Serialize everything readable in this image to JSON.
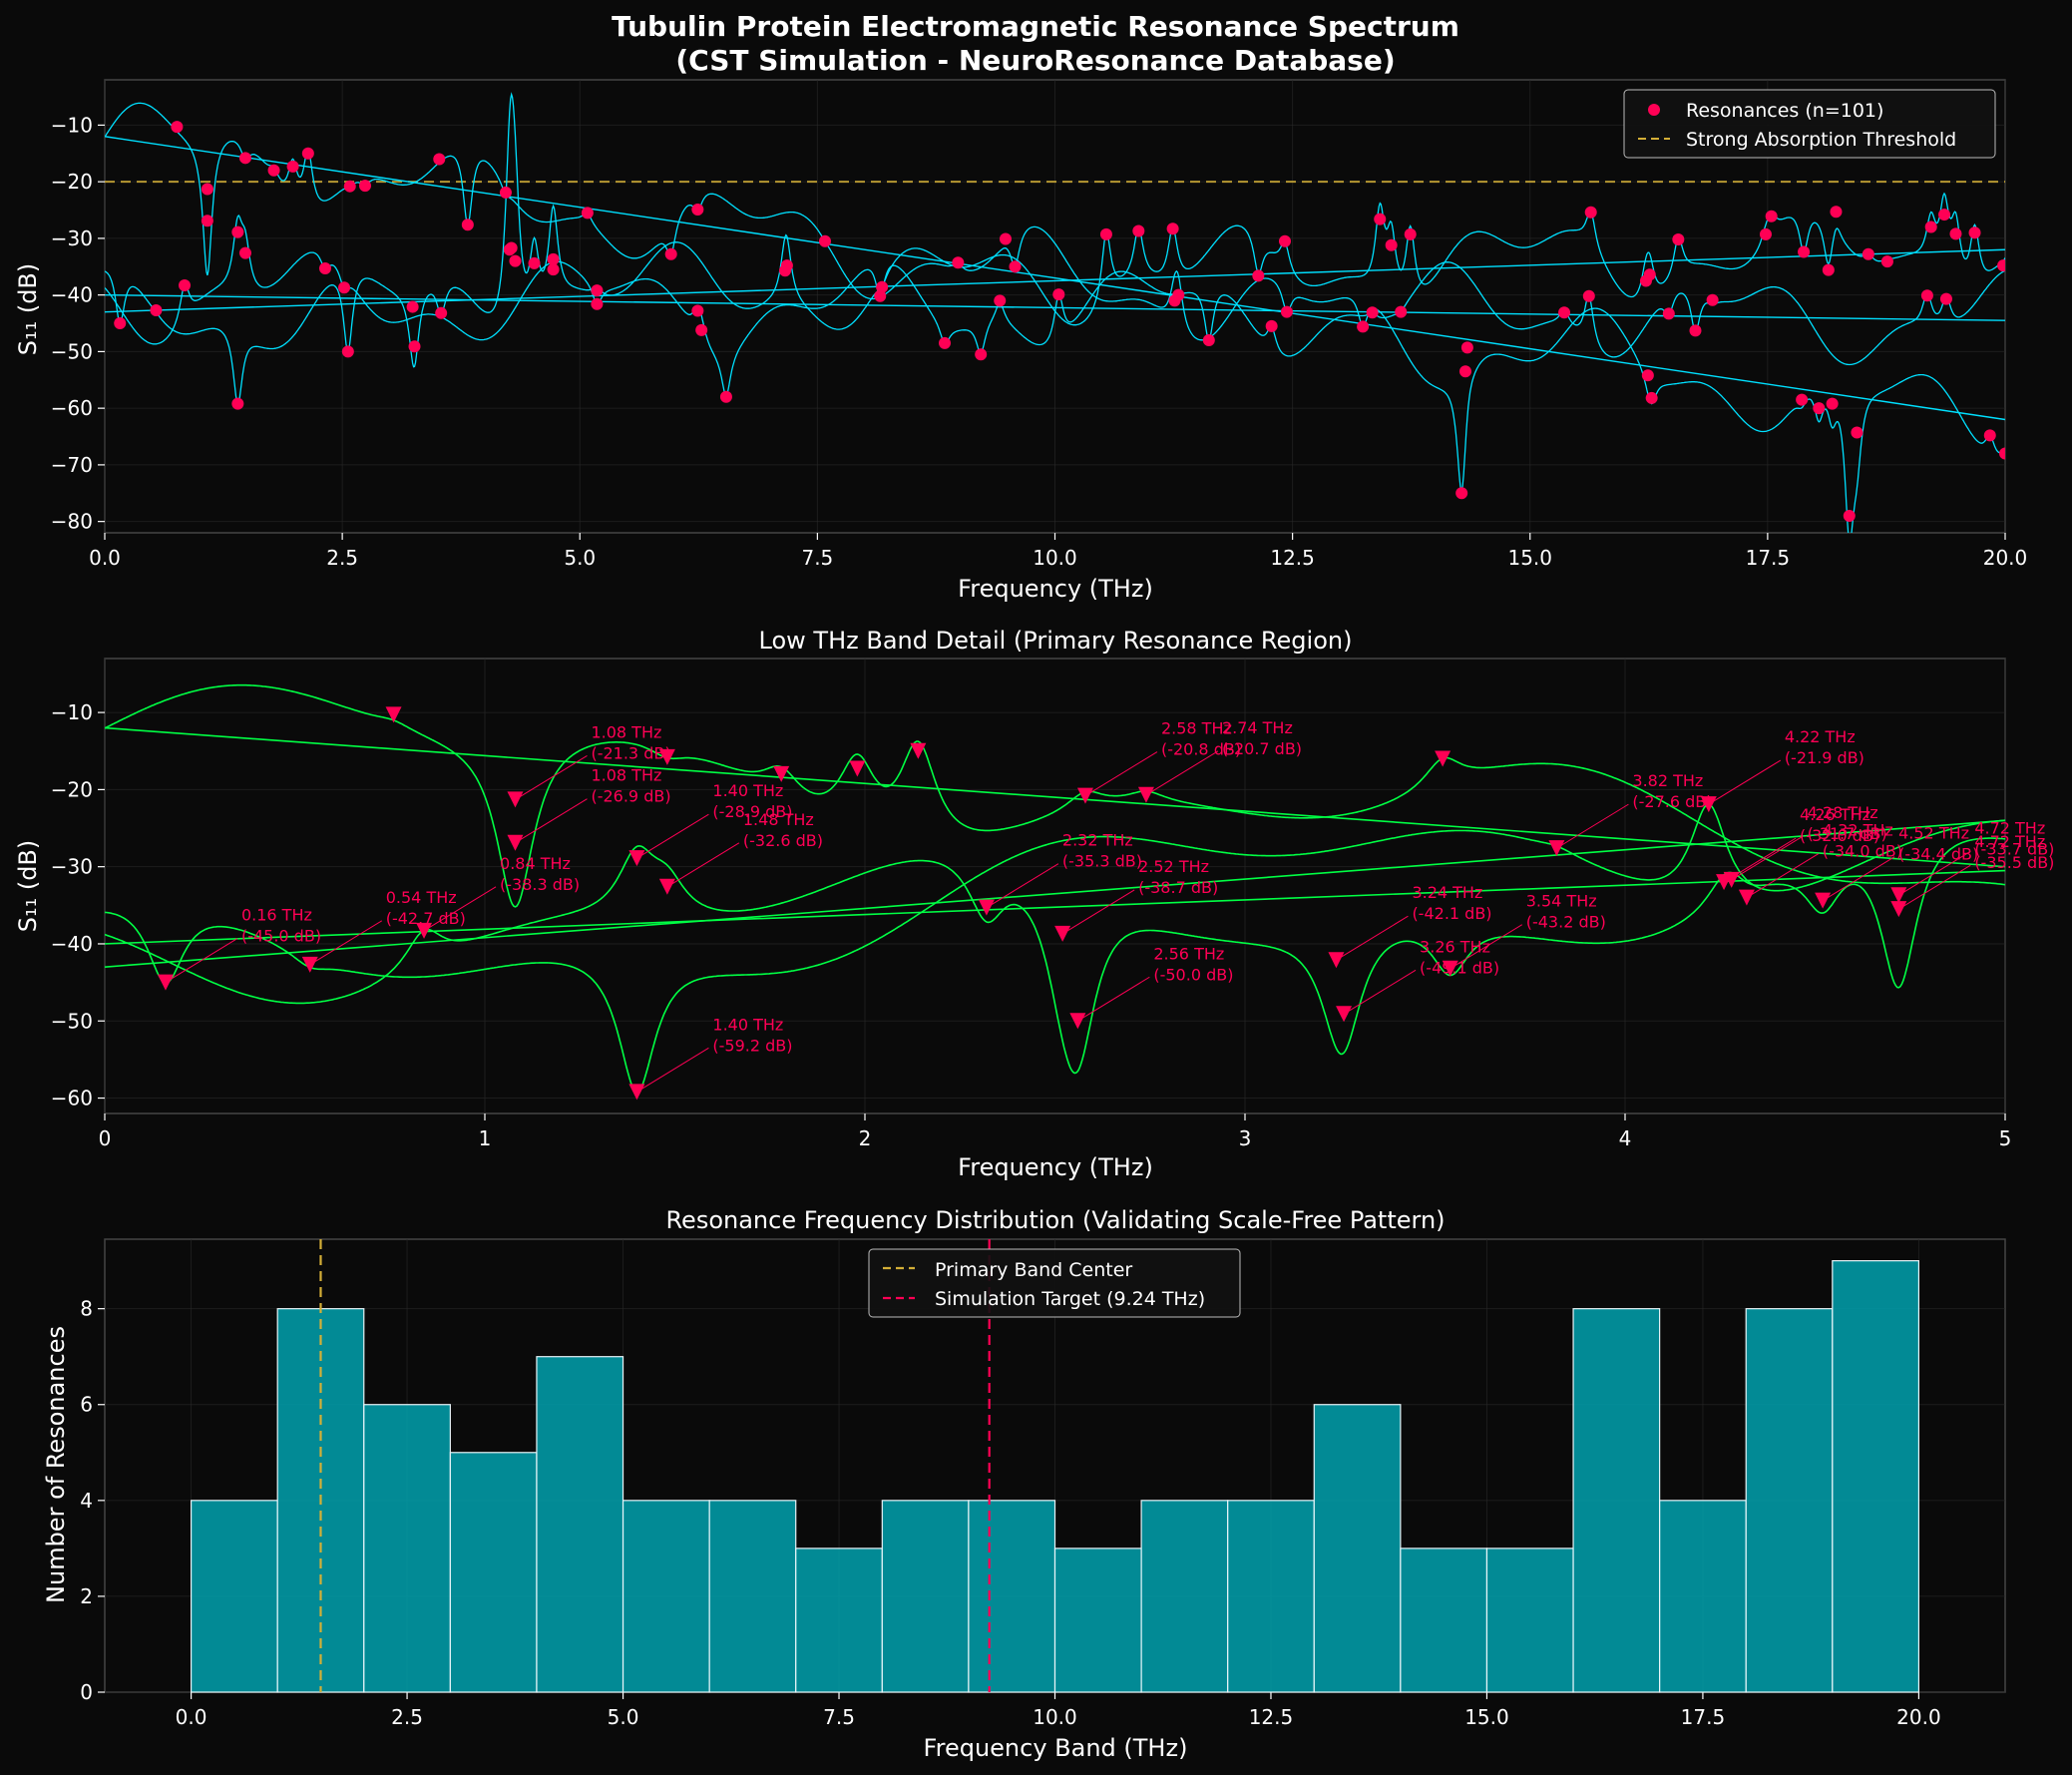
{
  "figure": {
    "title_line1": "Tubulin Protein Electromagnetic Resonance Spectrum",
    "title_line2": "(CST Simulation - NeuroResonance Database)"
  },
  "colors": {
    "background": "#0a0a0a",
    "axes_bg": "#0a0a0a",
    "spine": "#444444",
    "text": "#ffffff",
    "cyan": "#00e0ff",
    "green": "#00ff44",
    "marker": "#ff0055",
    "gold": "#d4af37",
    "bar": "#00aab8",
    "bar_edge": "#e8f4f8"
  },
  "chart_data": [
    {
      "id": "spectrum",
      "type": "line",
      "title": "",
      "xlabel": "Frequency (THz)",
      "ylabel": "S₁₁ (dB)",
      "xlim": [
        0,
        20
      ],
      "ylim": [
        -82,
        -2
      ],
      "xticks": [
        "0.0",
        "2.5",
        "5.0",
        "7.5",
        "10.0",
        "12.5",
        "15.0",
        "17.5",
        "20.0"
      ],
      "xtick_values": [
        0,
        2.5,
        5,
        7.5,
        10,
        12.5,
        15,
        17.5,
        20
      ],
      "yticks": [
        "−10",
        "−20",
        "−30",
        "−40",
        "−50",
        "−60",
        "−70",
        "−80"
      ],
      "ytick_values": [
        -10,
        -20,
        -30,
        -40,
        -50,
        -60,
        -70,
        -80
      ],
      "threshold": -20,
      "legend": [
        {
          "label": "Resonances (n=101)",
          "kind": "marker"
        },
        {
          "label": "Strong Absorption Threshold",
          "kind": "dashed"
        }
      ],
      "trends": [
        {
          "x": [
            0,
            20
          ],
          "y": [
            -12,
            -62
          ]
        },
        {
          "x": [
            0,
            20
          ],
          "y": [
            -43,
            -32
          ]
        },
        {
          "x": [
            0,
            20
          ],
          "y": [
            -40,
            -44.5
          ]
        }
      ],
      "resonances": [
        [
          0.16,
          -45.0
        ],
        [
          0.54,
          -42.7
        ],
        [
          0.76,
          -10.3
        ],
        [
          0.84,
          -38.3
        ],
        [
          1.08,
          -21.3
        ],
        [
          1.08,
          -26.9
        ],
        [
          1.4,
          -28.9
        ],
        [
          1.4,
          -59.2
        ],
        [
          1.48,
          -32.6
        ],
        [
          1.48,
          -15.8
        ],
        [
          1.78,
          -18.0
        ],
        [
          1.98,
          -17.3
        ],
        [
          2.14,
          -15.0
        ],
        [
          2.32,
          -35.3
        ],
        [
          2.52,
          -38.7
        ],
        [
          2.56,
          -50.0
        ],
        [
          2.58,
          -20.8
        ],
        [
          2.74,
          -20.7
        ],
        [
          3.24,
          -42.1
        ],
        [
          3.26,
          -49.1
        ],
        [
          3.52,
          -16.0
        ],
        [
          3.54,
          -43.2
        ],
        [
          3.82,
          -27.6
        ],
        [
          4.22,
          -21.9
        ],
        [
          4.26,
          -32.0
        ],
        [
          4.28,
          -31.7
        ],
        [
          4.32,
          -34.0
        ],
        [
          4.52,
          -34.4
        ],
        [
          4.72,
          -35.5
        ],
        [
          4.72,
          -33.7
        ],
        [
          5.08,
          -25.5
        ],
        [
          5.18,
          -41.6
        ],
        [
          5.18,
          -39.2
        ],
        [
          5.96,
          -32.8
        ],
        [
          6.24,
          -24.9
        ],
        [
          6.24,
          -42.8
        ],
        [
          6.28,
          -46.2
        ],
        [
          6.54,
          -58.0
        ],
        [
          7.16,
          -35.7
        ],
        [
          7.18,
          -34.8
        ],
        [
          7.58,
          -30.5
        ],
        [
          8.16,
          -40.2
        ],
        [
          8.18,
          -38.6
        ],
        [
          8.84,
          -48.5
        ],
        [
          8.98,
          -34.3
        ],
        [
          9.22,
          -50.5
        ],
        [
          9.42,
          -41.0
        ],
        [
          9.48,
          -30.1
        ],
        [
          9.58,
          -35.0
        ],
        [
          10.04,
          -39.9
        ],
        [
          10.54,
          -29.3
        ],
        [
          10.88,
          -28.7
        ],
        [
          11.24,
          -28.3
        ],
        [
          11.26,
          -41.0
        ],
        [
          11.3,
          -40.0
        ],
        [
          11.62,
          -48.0
        ],
        [
          12.14,
          -36.6
        ],
        [
          12.28,
          -45.5
        ],
        [
          12.42,
          -30.5
        ],
        [
          12.44,
          -43.0
        ],
        [
          13.24,
          -45.6
        ],
        [
          13.34,
          -43.1
        ],
        [
          13.42,
          -26.6
        ],
        [
          13.54,
          -31.2
        ],
        [
          13.64,
          -43.0
        ],
        [
          13.74,
          -29.3
        ],
        [
          14.28,
          -75.0
        ],
        [
          14.32,
          -53.5
        ],
        [
          14.34,
          -49.3
        ],
        [
          15.36,
          -43.1
        ],
        [
          15.62,
          -40.2
        ],
        [
          15.64,
          -25.4
        ],
        [
          16.22,
          -37.5
        ],
        [
          16.24,
          -54.2
        ],
        [
          16.26,
          -36.4
        ],
        [
          16.28,
          -58.2
        ],
        [
          16.46,
          -43.3
        ],
        [
          16.56,
          -30.2
        ],
        [
          16.74,
          -46.3
        ],
        [
          16.92,
          -40.9
        ],
        [
          17.48,
          -29.3
        ],
        [
          17.54,
          -26.1
        ],
        [
          17.86,
          -58.5
        ],
        [
          17.88,
          -32.4
        ],
        [
          18.04,
          -60.0
        ],
        [
          18.14,
          -35.6
        ],
        [
          18.18,
          -59.2
        ],
        [
          18.22,
          -25.3
        ],
        [
          18.36,
          -79.0
        ],
        [
          18.44,
          -64.3
        ],
        [
          18.56,
          -32.8
        ],
        [
          18.76,
          -34.1
        ],
        [
          19.18,
          -40.1
        ],
        [
          19.22,
          -28.0
        ],
        [
          19.36,
          -25.8
        ],
        [
          19.38,
          -40.7
        ],
        [
          19.48,
          -29.2
        ],
        [
          19.68,
          -29.0
        ],
        [
          19.84,
          -64.8
        ],
        [
          19.98,
          -34.8
        ],
        [
          20.0,
          -68.0
        ]
      ]
    },
    {
      "id": "lowband",
      "type": "line",
      "title": "Low THz Band Detail (Primary Resonance Region)",
      "xlabel": "Frequency (THz)",
      "ylabel": "S₁₁ (dB)",
      "xlim": [
        0,
        5
      ],
      "ylim": [
        -62,
        -3
      ],
      "xticks": [
        "0",
        "1",
        "2",
        "3",
        "4",
        "5"
      ],
      "xtick_values": [
        0,
        1,
        2,
        3,
        4,
        5
      ],
      "yticks": [
        "−10",
        "−20",
        "−30",
        "−40",
        "−50",
        "−60"
      ],
      "ytick_values": [
        -10,
        -20,
        -30,
        -40,
        -50,
        -60
      ],
      "trends": [
        {
          "x": [
            0,
            5
          ],
          "y": [
            -12,
            -30.0
          ]
        },
        {
          "x": [
            0,
            5
          ],
          "y": [
            -43,
            -24.0
          ]
        },
        {
          "x": [
            0,
            5
          ],
          "y": [
            -40,
            -30.5
          ]
        }
      ],
      "annotations": [
        {
          "x": 0.16,
          "y": -45.0,
          "label1": "0.16 THz",
          "label2": "(-45.0 dB)"
        },
        {
          "x": 0.54,
          "y": -42.7,
          "label1": "0.54 THz",
          "label2": "(-42.7 dB)"
        },
        {
          "x": 0.84,
          "y": -38.3,
          "label1": "0.84 THz",
          "label2": "(-38.3 dB)"
        },
        {
          "x": 1.08,
          "y": -21.3,
          "label1": "1.08 THz",
          "label2": "(-21.3 dB)"
        },
        {
          "x": 1.08,
          "y": -26.9,
          "label1": "1.08 THz",
          "label2": "(-26.9 dB)"
        },
        {
          "x": 1.4,
          "y": -28.9,
          "label1": "1.40 THz",
          "label2": "(-28.9 dB)"
        },
        {
          "x": 1.48,
          "y": -32.6,
          "label1": "1.48 THz",
          "label2": "(-32.6 dB)"
        },
        {
          "x": 1.4,
          "y": -59.2,
          "label1": "1.40 THz",
          "label2": "(-59.2 dB)"
        },
        {
          "x": 2.32,
          "y": -35.3,
          "label1": "2.32 THz",
          "label2": "(-35.3 dB)"
        },
        {
          "x": 2.52,
          "y": -38.7,
          "label1": "2.52 THz",
          "label2": "(-38.7 dB)"
        },
        {
          "x": 2.56,
          "y": -50.0,
          "label1": "2.56 THz",
          "label2": "(-50.0 dB)"
        },
        {
          "x": 2.58,
          "y": -20.8,
          "label1": "2.58 THz",
          "label2": "(-20.8 dB)"
        },
        {
          "x": 2.74,
          "y": -20.7,
          "label1": "2.74 THz",
          "label2": "(-20.7 dB)"
        },
        {
          "x": 3.24,
          "y": -42.1,
          "label1": "3.24 THz",
          "label2": "(-42.1 dB)"
        },
        {
          "x": 3.26,
          "y": -49.1,
          "label1": "3.26 THz",
          "label2": "(-49.1 dB)"
        },
        {
          "x": 3.54,
          "y": -43.2,
          "label1": "3.54 THz",
          "label2": "(-43.2 dB)"
        },
        {
          "x": 3.82,
          "y": -27.6,
          "label1": "3.82 THz",
          "label2": "(-27.6 dB)"
        },
        {
          "x": 4.22,
          "y": -21.9,
          "label1": "4.22 THz",
          "label2": "(-21.9 dB)"
        },
        {
          "x": 4.26,
          "y": -32.0,
          "label1": "4.26 THz",
          "label2": "(-32.0 dB)"
        },
        {
          "x": 4.28,
          "y": -31.7,
          "label1": "4.28 THz",
          "label2": "(-31.7 dB)"
        },
        {
          "x": 4.32,
          "y": -34.0,
          "label1": "4.32 THz",
          "label2": "(-34.0 dB)"
        },
        {
          "x": 4.52,
          "y": -34.4,
          "label1": "4.52 THz",
          "label2": "(-34.4 dB)"
        },
        {
          "x": 4.72,
          "y": -35.5,
          "label1": "4.72 THz",
          "label2": "(-35.5 dB)"
        },
        {
          "x": 4.72,
          "y": -33.7,
          "label1": "4.72 THz",
          "label2": "(-33.7 dB)"
        }
      ],
      "extra_markers": [
        [
          0.76,
          -10.3
        ],
        [
          1.48,
          -15.8
        ],
        [
          1.78,
          -18.0
        ],
        [
          1.98,
          -17.3
        ],
        [
          2.14,
          -15.0
        ],
        [
          3.52,
          -16.0
        ]
      ]
    },
    {
      "id": "histogram",
      "type": "bar",
      "title": "Resonance Frequency Distribution (Validating Scale-Free Pattern)",
      "xlabel": "Frequency Band (THz)",
      "ylabel": "Number of Resonances",
      "xlim": [
        -1,
        21
      ],
      "ylim": [
        0,
        9.45
      ],
      "xticks": [
        "0.0",
        "2.5",
        "5.0",
        "7.5",
        "10.0",
        "12.5",
        "15.0",
        "17.5",
        "20.0"
      ],
      "xtick_values": [
        0,
        2.5,
        5,
        7.5,
        10,
        12.5,
        15,
        17.5,
        20
      ],
      "yticks": [
        "0",
        "2",
        "4",
        "6",
        "8"
      ],
      "ytick_values": [
        0,
        2,
        4,
        6,
        8
      ],
      "bin_edges": [
        0,
        1,
        2,
        3,
        4,
        5,
        6,
        7,
        8,
        9,
        10,
        11,
        12,
        13,
        14,
        15,
        16,
        17,
        18,
        19,
        20
      ],
      "values": [
        4,
        8,
        6,
        5,
        7,
        4,
        4,
        3,
        4,
        4,
        3,
        4,
        4,
        6,
        3,
        3,
        8,
        4,
        8,
        9
      ],
      "vlines": [
        {
          "x": 1.5,
          "label": "Primary Band Center",
          "color": "gold"
        },
        {
          "x": 9.24,
          "label": "Simulation Target (9.24 THz)",
          "color": "marker"
        }
      ]
    }
  ]
}
